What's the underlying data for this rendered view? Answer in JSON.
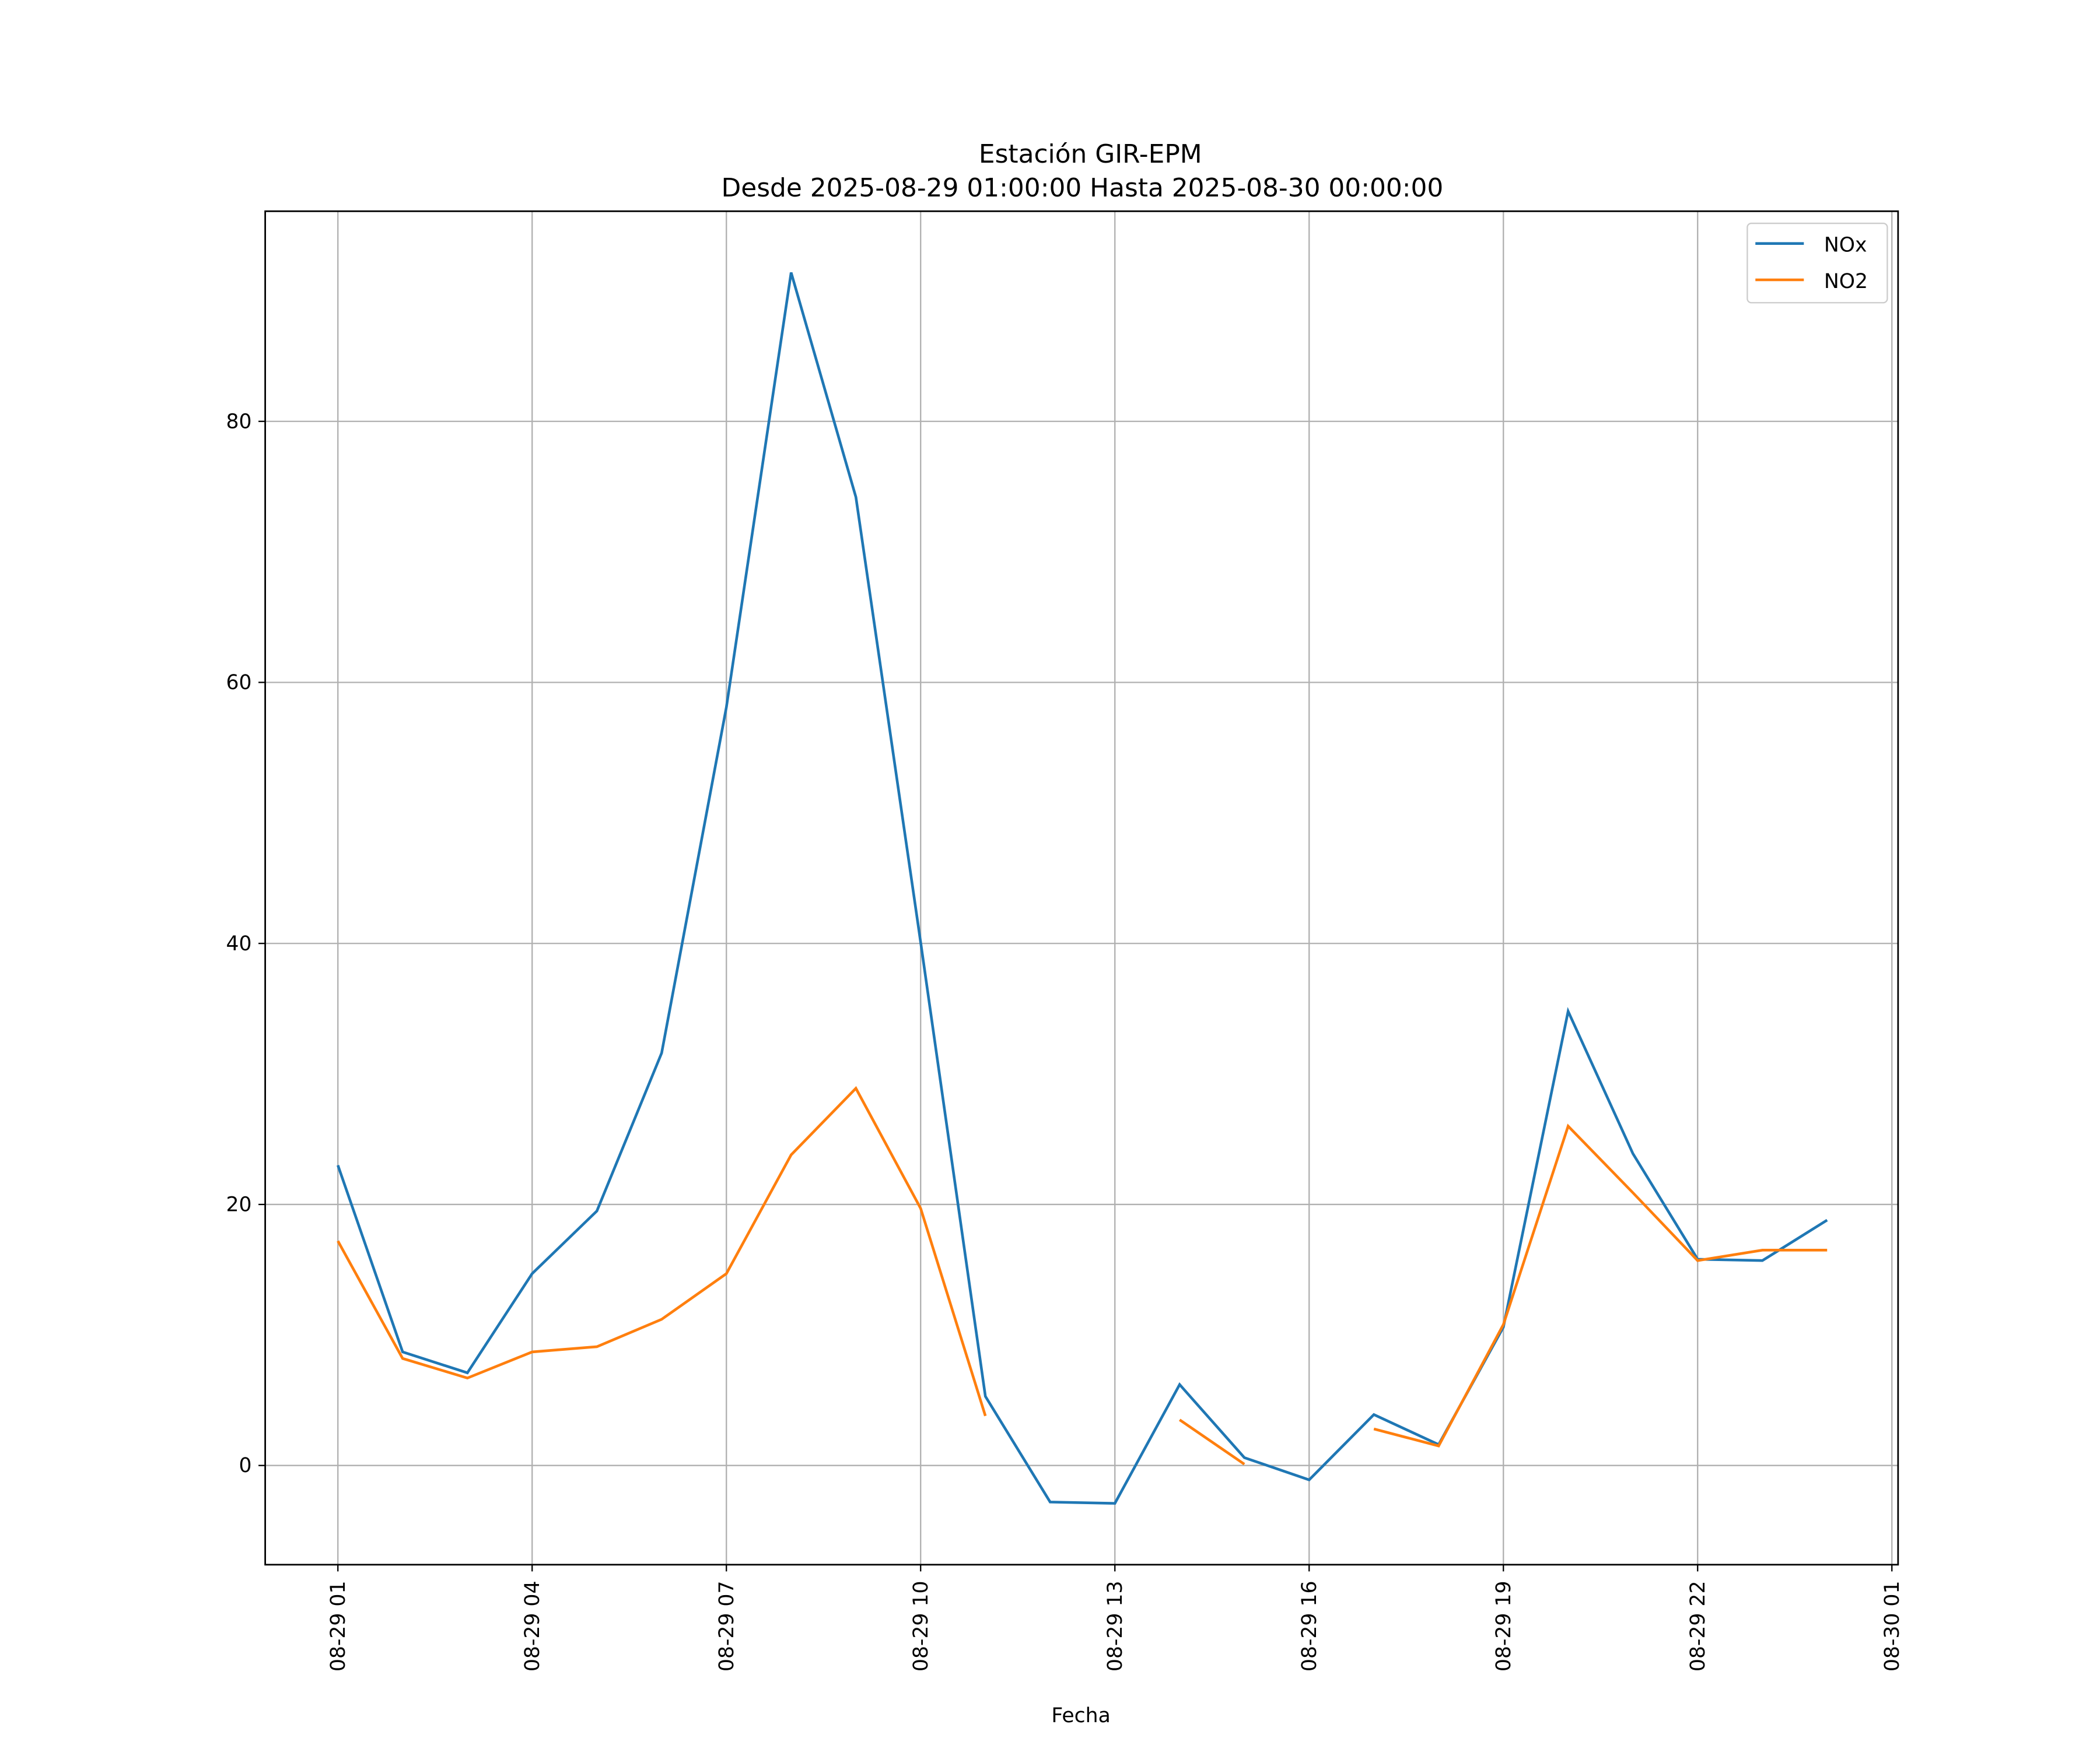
{
  "chart_data": {
    "type": "line",
    "title": "Estación GIR-EPM",
    "subtitle": "Desde 2025-08-29 01:00:00 Hasta 2025-08-30 00:00:00",
    "xlabel": "Fecha",
    "ylabel": "",
    "x": [
      "2025-08-29 01:00",
      "2025-08-29 02:00",
      "2025-08-29 03:00",
      "2025-08-29 04:00",
      "2025-08-29 05:00",
      "2025-08-29 06:00",
      "2025-08-29 07:00",
      "2025-08-29 08:00",
      "2025-08-29 09:00",
      "2025-08-29 10:00",
      "2025-08-29 11:00",
      "2025-08-29 12:00",
      "2025-08-29 13:00",
      "2025-08-29 14:00",
      "2025-08-29 15:00",
      "2025-08-29 16:00",
      "2025-08-29 17:00",
      "2025-08-29 18:00",
      "2025-08-29 19:00",
      "2025-08-29 20:00",
      "2025-08-29 21:00",
      "2025-08-29 22:00",
      "2025-08-29 23:00",
      "2025-08-30 00:00"
    ],
    "series": [
      {
        "name": "NOx",
        "color": "#1f77b4",
        "values": [
          23.0,
          8.7,
          7.1,
          14.7,
          19.5,
          31.6,
          58.1,
          91.4,
          74.2,
          40.1,
          5.3,
          -2.8,
          -2.9,
          6.2,
          0.6,
          -1.1,
          3.9,
          1.6,
          10.6,
          34.8,
          23.9,
          15.8,
          15.7,
          18.8
        ]
      },
      {
        "name": "NO2",
        "color": "#ff7f0e",
        "values": [
          17.2,
          8.2,
          6.7,
          8.7,
          9.1,
          11.2,
          14.7,
          23.8,
          28.9,
          19.7,
          3.8,
          null,
          null,
          3.5,
          0.1,
          null,
          2.8,
          1.5,
          10.8,
          26.0,
          20.9,
          15.7,
          16.5,
          16.5
        ]
      }
    ],
    "xticks": [
      "08-29 01",
      "08-29 04",
      "08-29 07",
      "08-29 10",
      "08-29 13",
      "08-29 16",
      "08-29 19",
      "08-29 22",
      "08-30 01"
    ],
    "yticks": [
      "0",
      "20",
      "40",
      "60",
      "80"
    ],
    "ylim": [
      -7.6,
      96.1
    ],
    "xlim": [
      "2025-08-28 23:53",
      "2025-08-30 01:06"
    ],
    "grid": true,
    "legend": "top-right"
  }
}
